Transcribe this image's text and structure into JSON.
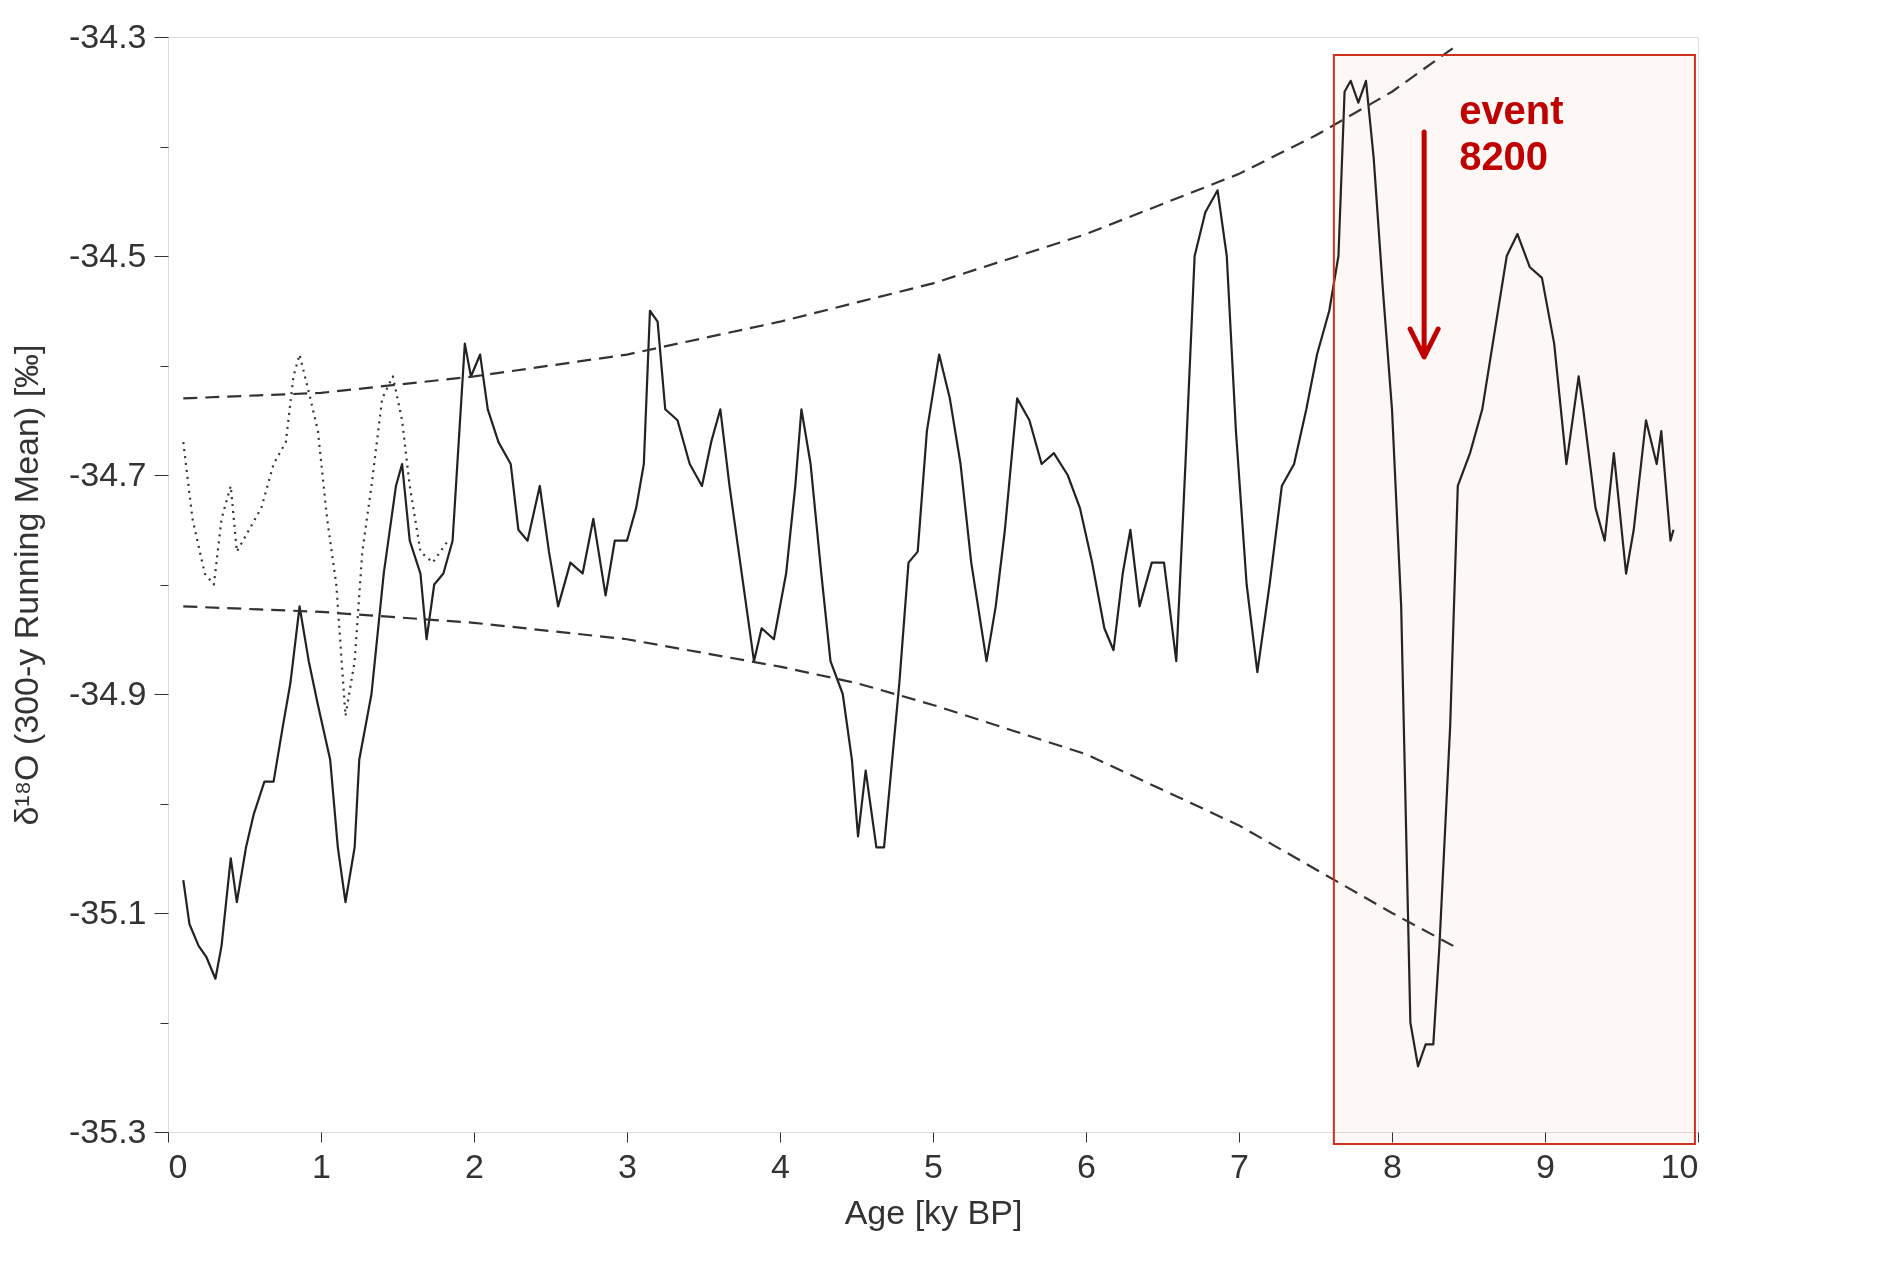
{
  "chart_data": {
    "type": "line",
    "xlabel": "Age [ky BP]",
    "ylabel": "δ¹⁸O (300-y Running Mean) [‰]",
    "xlim": [
      0,
      10
    ],
    "ylim": [
      -35.3,
      -34.3
    ],
    "xticks": [
      0,
      1,
      2,
      3,
      4,
      5,
      6,
      7,
      8,
      9,
      10
    ],
    "yticks": [
      -34.3,
      {
        "value": -34.4,
        "label": null
      },
      -34.5,
      {
        "value": -34.6,
        "label": null
      },
      -34.7,
      {
        "value": -34.8,
        "label": null
      },
      -34.9,
      {
        "value": -35.0,
        "label": null
      },
      -35.1,
      {
        "value": -35.2,
        "label": null
      },
      -35.3
    ],
    "grid": false,
    "series": [
      {
        "color": "#222222",
        "line_style": "solid",
        "x": [
          0.1,
          0.14,
          0.2,
          0.25,
          0.31,
          0.35,
          0.41,
          0.45,
          0.51,
          0.56,
          0.63,
          0.69,
          0.75,
          0.8,
          0.86,
          0.92,
          0.98,
          1.06,
          1.11,
          1.16,
          1.22,
          1.25,
          1.33,
          1.41,
          1.49,
          1.53,
          1.58,
          1.65,
          1.69,
          1.74,
          1.8,
          1.86,
          1.9,
          1.94,
          1.98,
          2.04,
          2.09,
          2.16,
          2.24,
          2.29,
          2.35,
          2.43,
          2.49,
          2.55,
          2.63,
          2.71,
          2.78,
          2.86,
          2.92,
          3.0,
          3.06,
          3.11,
          3.15,
          3.2,
          3.25,
          3.33,
          3.41,
          3.49,
          3.55,
          3.61,
          3.67,
          3.75,
          3.83,
          3.88,
          3.96,
          4.04,
          4.1,
          4.14,
          4.2,
          4.27,
          4.33,
          4.41,
          4.47,
          4.51,
          4.56,
          4.63,
          4.68,
          4.72,
          4.78,
          4.84,
          4.9,
          4.96,
          5.04,
          5.11,
          5.18,
          5.25,
          5.35,
          5.41,
          5.47,
          5.55,
          5.63,
          5.71,
          5.79,
          5.88,
          5.96,
          6.04,
          6.12,
          6.18,
          6.24,
          6.29,
          6.35,
          6.43,
          6.51,
          6.59,
          6.65,
          6.71,
          6.78,
          6.86,
          6.92,
          6.98,
          7.05,
          7.12,
          7.2,
          7.28,
          7.36,
          7.44,
          7.51,
          7.59,
          7.65,
          7.69,
          7.73,
          7.78,
          7.83,
          7.88,
          7.94,
          8.0,
          8.06,
          8.12,
          8.17,
          8.22,
          8.27,
          8.31,
          8.38,
          8.43,
          8.51,
          8.59,
          8.67,
          8.75,
          8.82,
          8.9,
          8.98,
          9.06,
          9.14,
          9.22,
          9.25,
          9.33,
          9.39,
          9.45,
          9.53,
          9.58,
          9.66,
          9.73,
          9.76,
          9.82,
          9.84
        ],
        "values": [
          -35.07,
          -35.11,
          -35.13,
          -35.14,
          -35.16,
          -35.13,
          -35.05,
          -35.09,
          -35.04,
          -35.01,
          -34.98,
          -34.98,
          -34.93,
          -34.89,
          -34.82,
          -34.87,
          -34.91,
          -34.96,
          -35.04,
          -35.09,
          -35.04,
          -34.96,
          -34.9,
          -34.79,
          -34.71,
          -34.69,
          -34.76,
          -34.79,
          -34.85,
          -34.8,
          -34.79,
          -34.76,
          -34.67,
          -34.58,
          -34.61,
          -34.59,
          -34.64,
          -34.67,
          -34.69,
          -34.75,
          -34.76,
          -34.71,
          -34.77,
          -34.82,
          -34.78,
          -34.79,
          -34.74,
          -34.81,
          -34.76,
          -34.76,
          -34.73,
          -34.69,
          -34.55,
          -34.56,
          -34.64,
          -34.65,
          -34.69,
          -34.71,
          -34.67,
          -34.64,
          -34.71,
          -34.79,
          -34.87,
          -34.84,
          -34.85,
          -34.79,
          -34.71,
          -34.64,
          -34.69,
          -34.79,
          -34.87,
          -34.9,
          -34.96,
          -35.03,
          -34.97,
          -35.04,
          -35.04,
          -34.98,
          -34.89,
          -34.78,
          -34.77,
          -34.66,
          -34.59,
          -34.63,
          -34.69,
          -34.78,
          -34.87,
          -34.82,
          -34.75,
          -34.63,
          -34.65,
          -34.69,
          -34.68,
          -34.7,
          -34.73,
          -34.78,
          -34.84,
          -34.86,
          -34.79,
          -34.75,
          -34.82,
          -34.78,
          -34.78,
          -34.87,
          -34.69,
          -34.5,
          -34.46,
          -34.44,
          -34.5,
          -34.66,
          -34.8,
          -34.88,
          -34.8,
          -34.71,
          -34.69,
          -34.64,
          -34.59,
          -34.55,
          -34.5,
          -34.35,
          -34.34,
          -34.36,
          -34.34,
          -34.41,
          -34.53,
          -34.64,
          -34.82,
          -35.2,
          -35.24,
          -35.22,
          -35.22,
          -35.13,
          -34.93,
          -34.71,
          -34.68,
          -34.64,
          -34.57,
          -34.5,
          -34.48,
          -34.51,
          -34.52,
          -34.58,
          -34.69,
          -34.61,
          -34.64,
          -34.73,
          -34.76,
          -34.68,
          -34.79,
          -34.75,
          -34.65,
          -34.69,
          -34.66,
          -34.76,
          -34.75
        ]
      },
      {
        "color": "#333333",
        "line_style": "dotted",
        "x": [
          0.1,
          0.16,
          0.24,
          0.3,
          0.35,
          0.41,
          0.45,
          0.53,
          0.61,
          0.69,
          0.77,
          0.82,
          0.86,
          0.93,
          0.98,
          1.04,
          1.1,
          1.16,
          1.22,
          1.27,
          1.33,
          1.4,
          1.47,
          1.53,
          1.58,
          1.65,
          1.73,
          1.83
        ],
        "values": [
          -34.67,
          -34.74,
          -34.79,
          -34.8,
          -34.74,
          -34.71,
          -34.77,
          -34.75,
          -34.73,
          -34.69,
          -34.67,
          -34.61,
          -34.59,
          -34.63,
          -34.66,
          -34.74,
          -34.8,
          -34.92,
          -34.87,
          -34.77,
          -34.71,
          -34.63,
          -34.61,
          -34.65,
          -34.71,
          -34.77,
          -34.78,
          -34.76
        ]
      },
      {
        "color": "#333333",
        "line_style": "dashed",
        "x": [
          0.1,
          1,
          2,
          3,
          4,
          5,
          6,
          7,
          7.5,
          8,
          8.4
        ],
        "values": [
          -34.63,
          -34.625,
          -34.61,
          -34.59,
          -34.56,
          -34.525,
          -34.48,
          -34.425,
          -34.39,
          -34.35,
          -34.31
        ]
      },
      {
        "color": "#333333",
        "line_style": "dashed",
        "x": [
          0.1,
          1,
          2,
          3,
          4,
          4.5,
          5,
          6,
          7,
          7.5,
          8,
          8.4
        ],
        "values": [
          -34.82,
          -34.825,
          -34.835,
          -34.85,
          -34.875,
          -34.89,
          -34.91,
          -34.955,
          -35.02,
          -35.06,
          -35.1,
          -35.13
        ]
      }
    ],
    "bands": [
      {
        "axis": "x",
        "from": 7.62,
        "to": 9.98,
        "color": "#d03020"
      }
    ],
    "annotations": [
      "event 8200"
    ]
  }
}
